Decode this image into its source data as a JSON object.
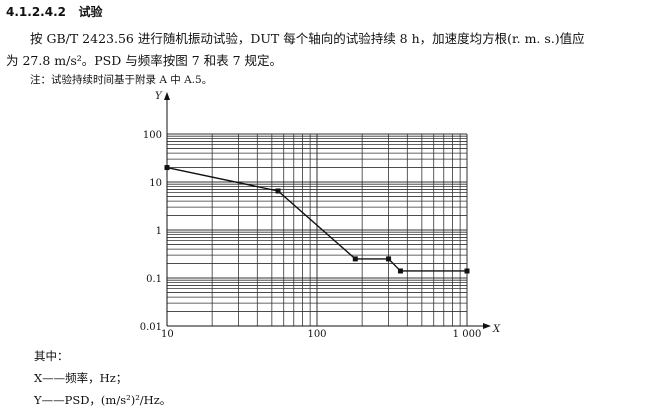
{
  "heading": {
    "number": "4.1.2.4.2",
    "title": "试验"
  },
  "paragraph": {
    "line1": "按 GB/T 2423.56 进行随机振动试验，DUT 每个轴向的试验持续 8 h，加速度均方根(r. m. s.)值应",
    "line2": "为 27.8 m/s²。PSD 与频率按图 7 和表 7 规定。"
  },
  "note": "注：试验持续时间基于附录 A 中 A.5。",
  "legend": {
    "heading": "其中：",
    "x": "X——频率，Hz；",
    "y": "Y——PSD，(m/s²)²/Hz。"
  },
  "chart_data": {
    "type": "line",
    "x_scale": "log",
    "y_scale": "log",
    "xlabel": "X",
    "ylabel": "Y",
    "xlim": [
      10,
      1000
    ],
    "ylim": [
      0.01,
      100
    ],
    "x_ticks": [
      "10",
      "100",
      "1 000"
    ],
    "y_ticks": [
      "0.01",
      "0.1",
      "1",
      "10",
      "100"
    ],
    "grid": true,
    "x": [
      10,
      55,
      180,
      300,
      360,
      1000
    ],
    "y": [
      20,
      6.5,
      0.25,
      0.25,
      0.14,
      0.14
    ],
    "line_color": "#111111"
  }
}
